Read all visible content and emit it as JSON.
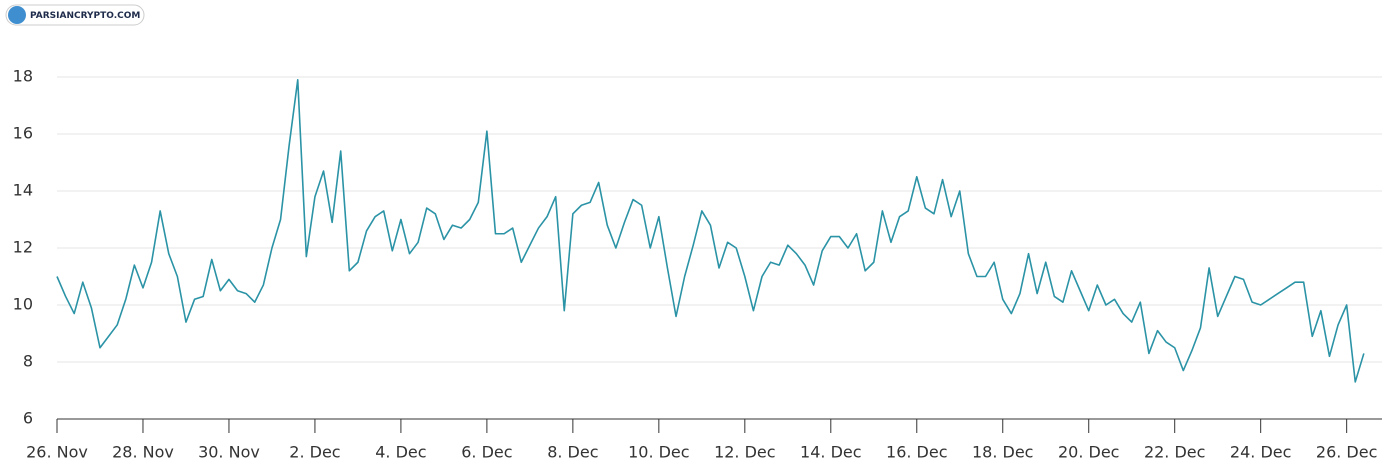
{
  "watermark": "PARSIANCRYPTO.COM",
  "chart_data": {
    "type": "line",
    "x": [
      0,
      0.2,
      0.4,
      0.6,
      0.8,
      1,
      1.2,
      1.4,
      1.6,
      1.8,
      2,
      2.2,
      2.4,
      2.6,
      2.8,
      3,
      3.2,
      3.4,
      3.6,
      3.8,
      4,
      4.2,
      4.4,
      4.6,
      4.8,
      5,
      5.2,
      5.4,
      5.6,
      5.8,
      6,
      6.2,
      6.4,
      6.6,
      6.8,
      7,
      7.2,
      7.4,
      7.6,
      7.8,
      8,
      8.2,
      8.4,
      8.6,
      8.8,
      9,
      9.2,
      9.4,
      9.6,
      9.8,
      10,
      10.2,
      10.4,
      10.6,
      10.8,
      11,
      11.2,
      11.4,
      11.6,
      11.8,
      12,
      12.2,
      12.4,
      12.6,
      12.8,
      13,
      13.2,
      13.4,
      13.6,
      13.8,
      14,
      14.2,
      14.4,
      14.6,
      14.8,
      15,
      15.2,
      15.4,
      15.6,
      15.8,
      16,
      16.2,
      16.4,
      16.6,
      16.8,
      17,
      17.2,
      17.4,
      17.6,
      17.8,
      18,
      18.2,
      18.4,
      18.6,
      18.8,
      19,
      19.2,
      19.4,
      19.6,
      19.8,
      20,
      20.2,
      20.4,
      20.6,
      20.8,
      21,
      21.2,
      21.4,
      21.6,
      21.8,
      22,
      22.2,
      22.4,
      22.6,
      22.8,
      23,
      23.2,
      23.4,
      23.6,
      23.8,
      24,
      24.2,
      24.4,
      24.6,
      24.8,
      25,
      25.2,
      25.4,
      25.6,
      25.8,
      26,
      26.2,
      26.4,
      26.6,
      26.8,
      27,
      27.2,
      27.4,
      27.6,
      27.8,
      28,
      28.2,
      28.4,
      28.6,
      28.8,
      29,
      29.2,
      29.4,
      29.6,
      29.8,
      30,
      30.2,
      30.4
    ],
    "series": [
      {
        "color": "#2b93a6",
        "values": [
          11.0,
          10.3,
          9.7,
          10.8,
          9.9,
          8.5,
          8.9,
          9.3,
          10.2,
          11.4,
          10.6,
          11.5,
          13.3,
          11.8,
          11.0,
          9.4,
          10.2,
          10.3,
          11.6,
          10.5,
          10.9,
          10.5,
          10.4,
          10.1,
          10.7,
          12.0,
          13.0,
          15.6,
          17.9,
          11.7,
          13.8,
          14.7,
          12.9,
          15.4,
          11.2,
          11.5,
          12.6,
          13.1,
          13.3,
          11.9,
          13.0,
          11.8,
          12.2,
          13.4,
          13.2,
          12.3,
          12.8,
          12.7,
          13.0,
          13.6,
          16.1,
          12.5,
          12.5,
          12.7,
          11.5,
          12.1,
          12.7,
          13.1,
          13.8,
          9.8,
          13.2,
          13.5,
          13.6,
          14.3,
          12.8,
          12.0,
          12.9,
          13.7,
          13.5,
          12.0,
          13.1,
          11.3,
          9.6,
          11.0,
          12.1,
          13.3,
          12.8,
          11.3,
          12.2,
          12.0,
          11.0,
          9.8,
          11.0,
          11.5,
          11.4,
          12.1,
          11.8,
          11.4,
          10.7,
          11.9,
          12.4,
          12.4,
          12.0,
          12.5,
          11.2,
          11.5,
          13.3,
          12.2,
          13.1,
          13.3,
          14.5,
          13.4,
          13.2,
          14.4,
          13.1,
          14.0,
          11.8,
          11.0,
          11.0,
          11.5,
          10.2,
          9.7,
          10.4,
          11.8,
          10.4,
          11.5,
          10.3,
          10.1,
          11.2,
          10.5,
          9.8,
          10.7,
          10.0,
          10.2,
          9.7,
          9.4,
          10.1,
          8.3,
          9.1,
          8.7,
          8.5,
          7.7,
          8.4,
          9.2,
          11.3,
          9.6,
          10.3,
          11.0,
          10.9,
          10.1,
          10.0,
          10.2,
          10.4,
          10.6,
          10.8,
          10.8,
          8.9,
          9.8,
          8.2,
          9.3,
          10.0,
          7.3,
          8.3
        ]
      }
    ],
    "xlim": [
      0,
      30.45
    ],
    "xticks": [
      {
        "value": 0,
        "label": "26. Nov"
      },
      {
        "value": 2,
        "label": "28. Nov"
      },
      {
        "value": 4,
        "label": "30. Nov"
      },
      {
        "value": 6,
        "label": "2. Dec"
      },
      {
        "value": 8,
        "label": "4. Dec"
      },
      {
        "value": 10,
        "label": "6. Dec"
      },
      {
        "value": 12,
        "label": "8. Dec"
      },
      {
        "value": 14,
        "label": "10. Dec"
      },
      {
        "value": 16,
        "label": "12. Dec"
      },
      {
        "value": 18,
        "label": "14. Dec"
      },
      {
        "value": 20,
        "label": "16. Dec"
      },
      {
        "value": 22,
        "label": "18. Dec"
      },
      {
        "value": 24,
        "label": "20. Dec"
      },
      {
        "value": 26,
        "label": "22. Dec"
      },
      {
        "value": 28,
        "label": "24. Dec"
      },
      {
        "value": 30,
        "label": "26. Dec"
      }
    ],
    "ylim": [
      6,
      20
    ],
    "yticks": [
      6,
      8,
      10,
      12,
      14,
      16,
      18
    ],
    "grid": true
  }
}
